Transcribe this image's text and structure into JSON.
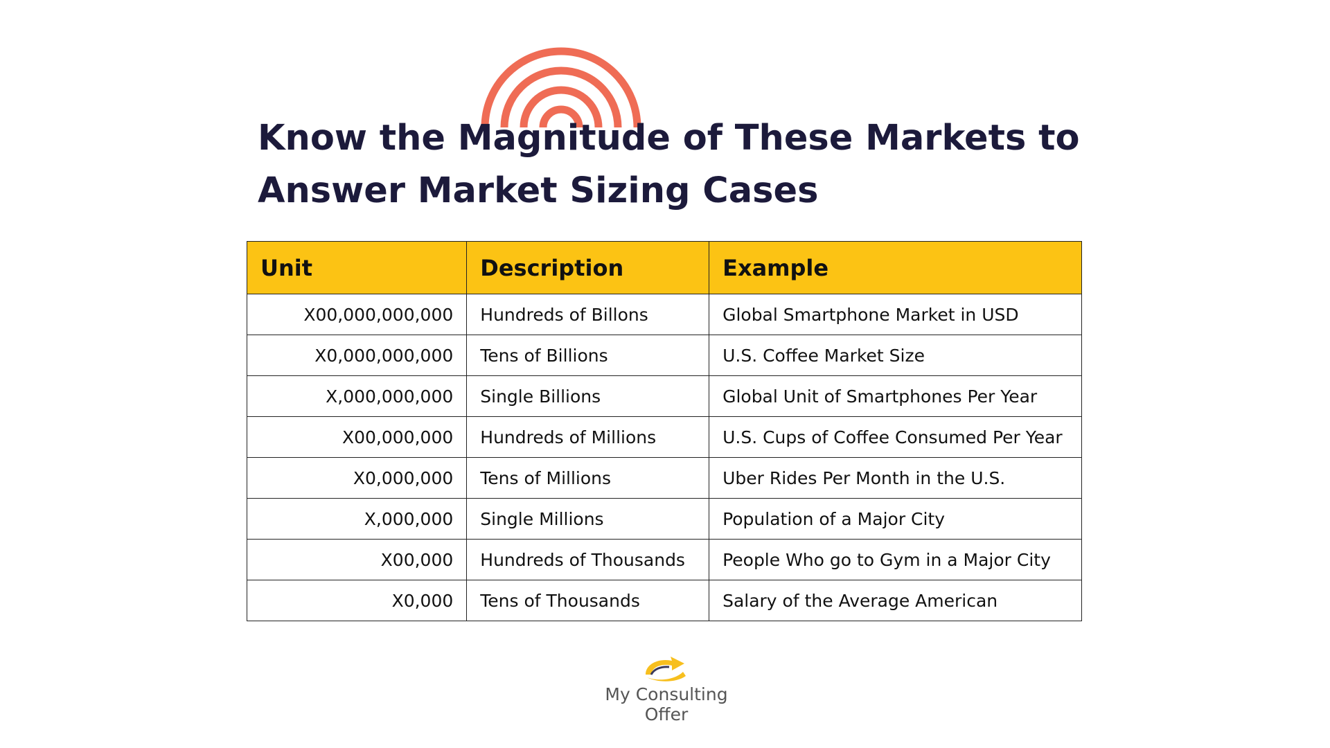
{
  "colors": {
    "arcs": "#ef6c55",
    "title": "#1c1a3b",
    "header_bg": "#fcc314",
    "border": "#222222",
    "logo_mark": "#f7bf1e",
    "logo_text": "#555555"
  },
  "title": {
    "line1": "Know the Magnitude of These Markets to",
    "line2": "Answer Market Sizing Cases"
  },
  "table": {
    "headers": [
      "Unit",
      "Description",
      "Example"
    ],
    "rows": [
      {
        "unit": "X00,000,000,000",
        "description": "Hundreds of Billons",
        "example": "Global Smartphone Market in USD"
      },
      {
        "unit": "X0,000,000,000",
        "description": "Tens of Billions",
        "example": "U.S. Coffee Market Size"
      },
      {
        "unit": "X,000,000,000",
        "description": "Single Billions",
        "example": "Global Unit of Smartphones Per Year"
      },
      {
        "unit": "X00,000,000",
        "description": "Hundreds of Millions",
        "example": "U.S. Cups of Coffee Consumed Per Year"
      },
      {
        "unit": "X0,000,000",
        "description": "Tens of Millions",
        "example": "Uber Rides Per Month in the U.S."
      },
      {
        "unit": "X,000,000",
        "description": "Single Millions",
        "example": "Population of a Major City"
      },
      {
        "unit": "X00,000",
        "description": "Hundreds of Thousands",
        "example": "People Who go to Gym in a Major City"
      },
      {
        "unit": "X0,000",
        "description": "Tens of Thousands",
        "example": "Salary of the Average American"
      }
    ]
  },
  "logo": {
    "icon": "swoosh-arrow-icon",
    "text": "My Consulting Offer"
  }
}
